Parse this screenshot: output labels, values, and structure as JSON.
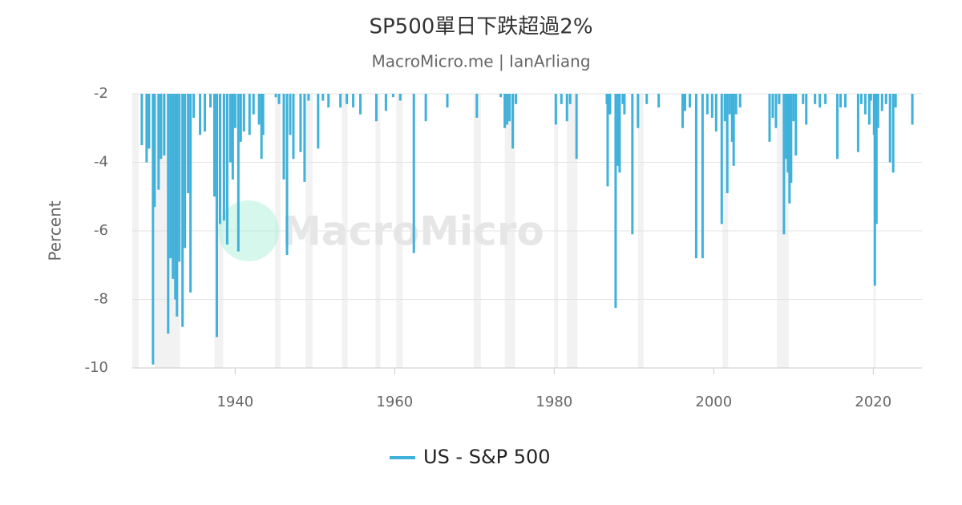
{
  "chart_data": {
    "type": "bar",
    "title": "SP500單日下跌超過2%",
    "subtitle": "MacroMicro.me | IanArliang",
    "watermark": "MacroMicro",
    "y_label": "Percent",
    "series": [
      {
        "name": "US - S&P 500",
        "color": "#3fb1da",
        "x": [
          1928.3,
          1928.9,
          1929.2,
          1929.7,
          1929.9,
          1930.4,
          1930.7,
          1931.1,
          1931.6,
          1931.9,
          1932.2,
          1932.5,
          1932.7,
          1933.0,
          1933.4,
          1933.7,
          1934.1,
          1934.4,
          1934.8,
          1935.6,
          1936.2,
          1936.9,
          1937.4,
          1937.7,
          1938.1,
          1938.6,
          1939.0,
          1939.4,
          1939.7,
          1940.0,
          1940.4,
          1940.7,
          1941.1,
          1941.8,
          1942.3,
          1943.0,
          1943.3,
          1943.5,
          1945.1,
          1945.5,
          1946.1,
          1946.5,
          1946.9,
          1947.3,
          1948.2,
          1948.7,
          1949.2,
          1950.4,
          1951.0,
          1951.7,
          1953.2,
          1954.0,
          1954.8,
          1955.7,
          1957.7,
          1958.9,
          1959.8,
          1960.7,
          1962.4,
          1963.9,
          1966.6,
          1970.3,
          1973.3,
          1973.8,
          1974.1,
          1974.4,
          1974.8,
          1975.2,
          1980.2,
          1980.9,
          1981.6,
          1982.0,
          1982.8,
          1986.6,
          1986.7,
          1987.0,
          1987.7,
          1988.0,
          1988.2,
          1988.6,
          1988.8,
          1989.8,
          1990.5,
          1991.6,
          1993.1,
          1996.1,
          1996.4,
          1997.0,
          1997.8,
          1998.6,
          1999.2,
          1999.8,
          2000.3,
          2001.0,
          2001.4,
          2001.7,
          2002.0,
          2002.3,
          2002.5,
          2002.8,
          2003.3,
          2007.0,
          2007.4,
          2007.8,
          2008.2,
          2008.8,
          2009.1,
          2009.3,
          2009.5,
          2009.7,
          2010.0,
          2010.3,
          2011.2,
          2011.6,
          2012.7,
          2013.3,
          2014.0,
          2015.5,
          2015.9,
          2016.5,
          2018.1,
          2018.5,
          2019.0,
          2019.5,
          2019.7,
          2020.1,
          2020.2,
          2020.4,
          2020.6,
          2021.1,
          2021.6,
          2022.1,
          2022.5,
          2022.8,
          2024.9
        ],
        "values": [
          -3.5,
          -4.0,
          -3.6,
          -9.9,
          -5.3,
          -4.8,
          -3.9,
          -3.8,
          -9.0,
          -6.8,
          -7.4,
          -8.0,
          -8.5,
          -6.9,
          -8.8,
          -6.5,
          -4.9,
          -7.8,
          -2.7,
          -3.2,
          -3.1,
          -2.4,
          -5.0,
          -9.1,
          -5.8,
          -5.7,
          -6.4,
          -4.0,
          -4.5,
          -3.0,
          -6.6,
          -3.4,
          -3.1,
          -3.2,
          -2.6,
          -2.9,
          -3.9,
          -3.2,
          -2.1,
          -2.3,
          -4.5,
          -6.7,
          -3.2,
          -3.9,
          -3.7,
          -4.57,
          -2.2,
          -3.6,
          -2.2,
          -2.4,
          -2.4,
          -2.3,
          -2.4,
          -2.6,
          -2.8,
          -2.5,
          -2.1,
          -2.2,
          -6.65,
          -2.8,
          -2.4,
          -2.7,
          -2.1,
          -3.0,
          -2.9,
          -2.8,
          -3.6,
          -2.3,
          -2.9,
          -2.3,
          -2.8,
          -2.3,
          -3.9,
          -2.3,
          -4.7,
          -2.6,
          -8.25,
          -4.1,
          -4.3,
          -2.3,
          -2.6,
          -6.1,
          -3.0,
          -2.3,
          -2.4,
          -3.0,
          -2.5,
          -2.4,
          -6.8,
          -6.8,
          -2.6,
          -2.7,
          -3.1,
          -5.8,
          -2.8,
          -4.9,
          -2.6,
          -3.4,
          -4.1,
          -2.6,
          -2.4,
          -3.4,
          -2.7,
          -3.0,
          -2.3,
          -6.1,
          -3.9,
          -4.3,
          -5.2,
          -4.6,
          -2.8,
          -3.8,
          -2.3,
          -2.9,
          -2.3,
          -2.4,
          -2.3,
          -3.9,
          -2.4,
          -2.4,
          -3.7,
          -2.3,
          -2.6,
          -2.9,
          -2.2,
          -3.2,
          -7.6,
          -5.8,
          -3.0,
          -2.5,
          -2.3,
          -4.0,
          -4.3,
          -2.4,
          -2.9
        ]
      }
    ],
    "recessions": [
      [
        1926.8,
        1927.9
      ],
      [
        1929.9,
        1933.1
      ],
      [
        1937.4,
        1938.5
      ],
      [
        1945.0,
        1945.7
      ],
      [
        1948.8,
        1949.7
      ],
      [
        1953.4,
        1954.1
      ],
      [
        1957.6,
        1958.2
      ],
      [
        1960.2,
        1961.0
      ],
      [
        1969.9,
        1970.8
      ],
      [
        1973.8,
        1975.1
      ],
      [
        1980.0,
        1980.5
      ],
      [
        1981.6,
        1982.9
      ],
      [
        1990.5,
        1991.2
      ],
      [
        2001.1,
        2001.8
      ],
      [
        2007.9,
        2009.4
      ],
      [
        2020.0,
        2020.3
      ]
    ],
    "recession_color": "#f2f2f2",
    "xlim": [
      1927.1,
      2026.1
    ],
    "xticks": [
      1940,
      1960,
      1980,
      2000,
      2020
    ],
    "ylim": [
      -10,
      -2
    ],
    "yticks": [
      -2,
      -4,
      -6,
      -8,
      -10
    ],
    "grid": true,
    "legend": "bottom"
  }
}
